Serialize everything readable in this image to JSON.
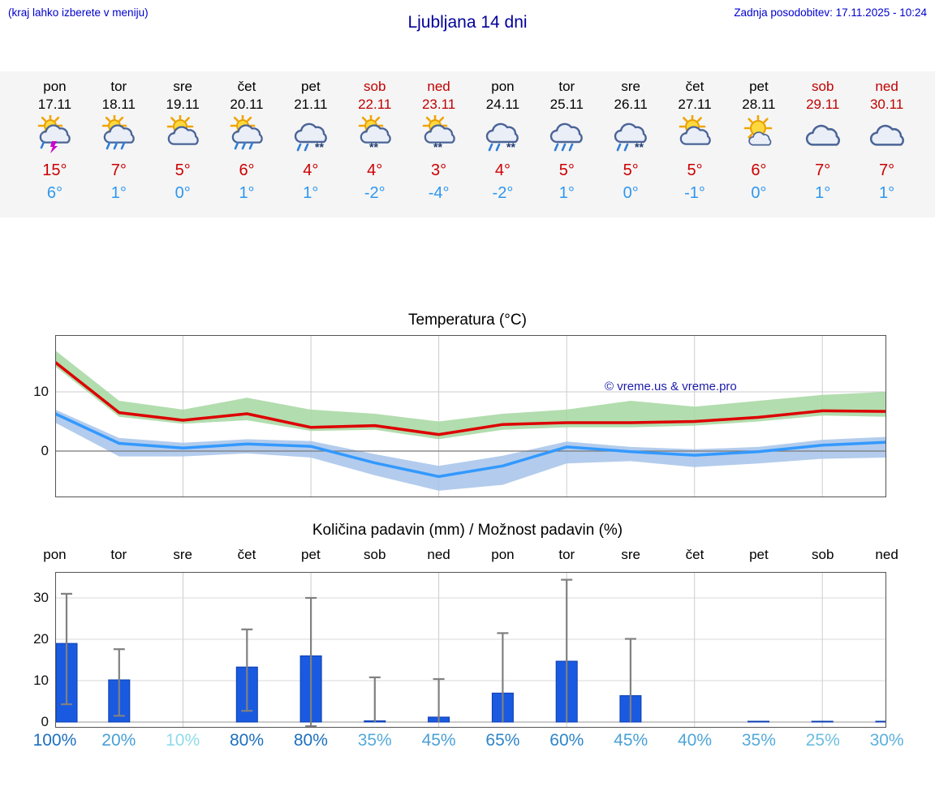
{
  "header": {
    "hint": "(kraj lahko izberete v meniju)",
    "title": "Ljubljana 14 dni",
    "updated": "Zadnja posodobitev: 17.11.2025 - 10:24"
  },
  "days": [
    {
      "name": "pon",
      "date": "17.11",
      "weekend": false,
      "icon": "sun-cloud-thunder",
      "hi": "15°",
      "lo": "6°"
    },
    {
      "name": "tor",
      "date": "18.11",
      "weekend": false,
      "icon": "sun-cloud-rain",
      "hi": "7°",
      "lo": "1°"
    },
    {
      "name": "sre",
      "date": "19.11",
      "weekend": false,
      "icon": "sun-cloud",
      "hi": "5°",
      "lo": "0°"
    },
    {
      "name": "čet",
      "date": "20.11",
      "weekend": false,
      "icon": "sun-cloud-rain",
      "hi": "6°",
      "lo": "1°"
    },
    {
      "name": "pet",
      "date": "21.11",
      "weekend": false,
      "icon": "cloud-rain-snow",
      "hi": "4°",
      "lo": "1°"
    },
    {
      "name": "sob",
      "date": "22.11",
      "weekend": true,
      "icon": "sun-cloud-snow",
      "hi": "4°",
      "lo": "-2°"
    },
    {
      "name": "ned",
      "date": "23.11",
      "weekend": true,
      "icon": "sun-cloud-snow",
      "hi": "3°",
      "lo": "-4°"
    },
    {
      "name": "pon",
      "date": "24.11",
      "weekend": false,
      "icon": "cloud-rain-snow",
      "hi": "4°",
      "lo": "-2°"
    },
    {
      "name": "tor",
      "date": "25.11",
      "weekend": false,
      "icon": "cloud-rain",
      "hi": "5°",
      "lo": "1°"
    },
    {
      "name": "sre",
      "date": "26.11",
      "weekend": false,
      "icon": "cloud-rain-snow",
      "hi": "5°",
      "lo": "0°"
    },
    {
      "name": "čet",
      "date": "27.11",
      "weekend": false,
      "icon": "sun-cloud",
      "hi": "5°",
      "lo": "-1°"
    },
    {
      "name": "pet",
      "date": "28.11",
      "weekend": false,
      "icon": "mostly-sunny",
      "hi": "6°",
      "lo": "0°"
    },
    {
      "name": "sob",
      "date": "29.11",
      "weekend": true,
      "icon": "cloudy",
      "hi": "7°",
      "lo": "1°"
    },
    {
      "name": "ned",
      "date": "30.11",
      "weekend": true,
      "icon": "cloudy",
      "hi": "7°",
      "lo": "1°"
    }
  ],
  "chart_data": [
    {
      "type": "line",
      "title": "Temperatura (°C)",
      "x_labels": [
        "17.11",
        "18.11",
        "19.11",
        "20.11",
        "21.11",
        "22.11",
        "23.11",
        "24.11",
        "25.11",
        "26.11",
        "27.11",
        "28.11",
        "29.11",
        "30.11"
      ],
      "ylim": [
        -8,
        19.5
      ],
      "yticks": [
        0,
        10
      ],
      "series": [
        {
          "name": "max-temp",
          "color": "#dd0000",
          "values": [
            15,
            6.5,
            5.2,
            6.3,
            4,
            4.3,
            2.8,
            4.5,
            4.8,
            4.8,
            5,
            5.7,
            6.8,
            6.7
          ]
        },
        {
          "name": "min-temp",
          "color": "#3399ff",
          "values": [
            6.3,
            1.3,
            0.5,
            1.2,
            0.8,
            -2,
            -4.3,
            -2.5,
            0.7,
            -0.1,
            -0.7,
            -0.1,
            1,
            1.5
          ]
        }
      ],
      "bands": [
        {
          "name": "max-temp-range",
          "color": "#a5d7a0",
          "upper": [
            17,
            8.5,
            7,
            9,
            7,
            6.3,
            5,
            6.3,
            7,
            8.5,
            7.5,
            8.5,
            9.5,
            10
          ],
          "lower": [
            14.3,
            5.8,
            4.6,
            5.2,
            3.4,
            3.6,
            2,
            3.6,
            4,
            4,
            4.3,
            5,
            6,
            5.8
          ]
        },
        {
          "name": "min-temp-range",
          "color": "#a6c3ea",
          "upper": [
            7,
            2.2,
            1.4,
            2,
            1.7,
            -0.5,
            -2.5,
            -0.8,
            1.6,
            0.7,
            0.3,
            0.7,
            1.9,
            2.4
          ],
          "lower": [
            4.8,
            -0.9,
            -0.9,
            -0.4,
            -1.1,
            -4.1,
            -6.7,
            -5.7,
            -2.1,
            -1.7,
            -2.7,
            -2.1,
            -1.3,
            -1.1
          ]
        }
      ],
      "annotations": [
        "© vreme.us & vreme.pro"
      ],
      "legend_position": "none",
      "grid": true
    },
    {
      "type": "bar",
      "title": "Količina padavin (mm) / Možnost padavin (%)",
      "categories": [
        "pon",
        "tor",
        "sre",
        "čet",
        "pet",
        "sob",
        "ned",
        "pon",
        "tor",
        "sre",
        "čet",
        "pet",
        "sob",
        "ned"
      ],
      "values": [
        19,
        10.2,
        0,
        13.3,
        16,
        0.3,
        1.2,
        7,
        14.7,
        6.4,
        0,
        0.2,
        0.2,
        0.2
      ],
      "whiskers": [
        [
          4.3,
          31
        ],
        [
          1.5,
          17.6
        ],
        null,
        [
          2.7,
          22.4
        ],
        [
          -1,
          30
        ],
        [
          0,
          10.8
        ],
        [
          0,
          10.4
        ],
        [
          0,
          21.5
        ],
        [
          0,
          34.4
        ],
        [
          0,
          20.1
        ],
        null,
        null,
        null,
        null
      ],
      "percent_labels": [
        "100%",
        "20%",
        "10%",
        "80%",
        "80%",
        "35%",
        "45%",
        "65%",
        "60%",
        "45%",
        "40%",
        "35%",
        "25%",
        "30%"
      ],
      "percent_colors": [
        "#1d6ec0",
        "#49a0d5",
        "#8fdbe9",
        "#1d6ec0",
        "#1d6ec0",
        "#55aadb",
        "#4aa0d6",
        "#2e85c8",
        "#2e85c8",
        "#4aa0d6",
        "#4fa5d8",
        "#55aadb",
        "#6cbde0",
        "#5cb0dd"
      ],
      "ylim": [
        0,
        36
      ],
      "yticks": [
        0,
        10,
        20,
        30
      ],
      "bar_color": "#1a5ae0",
      "grid": true
    }
  ]
}
